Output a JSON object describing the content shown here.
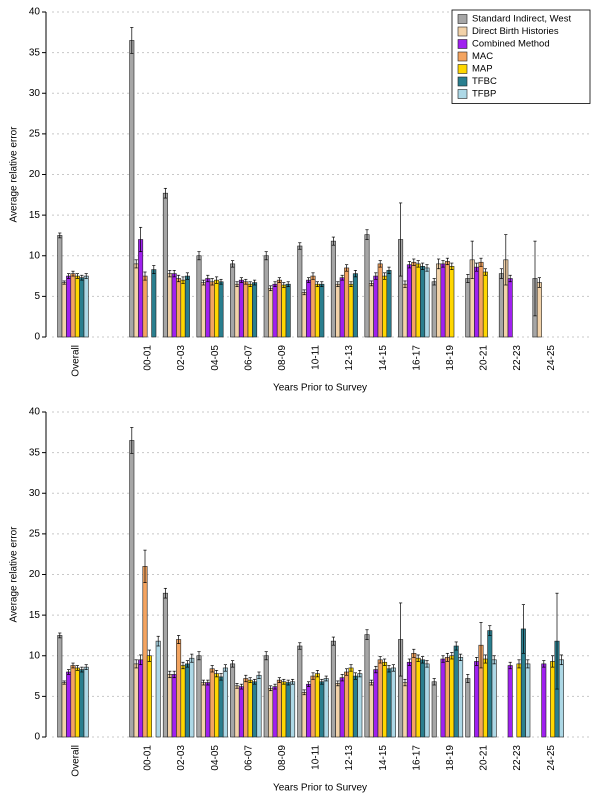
{
  "chart_data": [
    {
      "type": "bar",
      "xlabel": "Years Prior to Survey",
      "ylabel": "Average relative error",
      "categories": [
        "Overall",
        "00-01",
        "02-03",
        "04-05",
        "06-07",
        "08-09",
        "10-11",
        "12-13",
        "14-15",
        "16-17",
        "18-19",
        "20-21",
        "22-23",
        "24-25"
      ],
      "ylim": [
        0,
        40
      ],
      "yticks": [
        0,
        5,
        10,
        15,
        20,
        25,
        30,
        35,
        40
      ],
      "grid": true,
      "legend": "top-right",
      "series": [
        {
          "name": "Standard Indirect, West",
          "color": "#a6a6a6",
          "values": [
            12.5,
            36.5,
            17.7,
            10,
            9,
            10,
            11.2,
            11.8,
            12.6,
            12,
            6.8,
            7.2,
            7.8,
            7.2
          ],
          "errors": [
            0.3,
            1.6,
            0.6,
            0.5,
            0.4,
            0.5,
            0.4,
            0.5,
            0.6,
            4.5,
            0.4,
            0.5,
            0.6,
            4.6
          ]
        },
        {
          "name": "Direct Birth Histories",
          "color": "#f2d2a9",
          "values": [
            6.7,
            9,
            7.8,
            6.7,
            6.5,
            6,
            5.5,
            6.5,
            6.6,
            6.5,
            9,
            9.5,
            9.5,
            6.7
          ],
          "errors": [
            0.2,
            0.5,
            0.4,
            0.3,
            0.3,
            0.3,
            0.3,
            0.3,
            0.3,
            0.4,
            0.6,
            2.3,
            3.1,
            0.6
          ]
        },
        {
          "name": "Combined Method",
          "color": "#a020f0",
          "values": [
            7.5,
            12,
            7.8,
            7.2,
            7,
            6.5,
            7,
            7.3,
            7.5,
            8.9,
            9,
            8.6,
            7.2,
            null
          ],
          "errors": [
            0.3,
            1.5,
            0.4,
            0.4,
            0.3,
            0.3,
            0.3,
            0.3,
            0.4,
            0.4,
            0.4,
            0.5,
            0.4,
            null
          ]
        },
        {
          "name": "MAC",
          "color": "#f4a460",
          "values": [
            7.8,
            7.5,
            7.2,
            6.8,
            6.8,
            7,
            7.5,
            8.5,
            9,
            9.2,
            9.3,
            9.2,
            null,
            null
          ],
          "errors": [
            0.3,
            0.5,
            0.4,
            0.4,
            0.3,
            0.3,
            0.4,
            0.4,
            0.4,
            0.4,
            0.4,
            0.5,
            null,
            null
          ]
        },
        {
          "name": "MAP",
          "color": "#ffd700",
          "values": [
            7.5,
            null,
            7,
            7,
            6.5,
            6.4,
            6.5,
            6.5,
            7.5,
            9,
            8.7,
            8,
            null,
            null
          ],
          "errors": [
            0.3,
            null,
            0.4,
            0.4,
            0.3,
            0.3,
            0.3,
            0.3,
            0.4,
            0.4,
            0.4,
            0.4,
            null,
            null
          ]
        },
        {
          "name": "TFBC",
          "color": "#2a7f8f",
          "values": [
            7.3,
            8.3,
            7.5,
            6.8,
            6.7,
            6.5,
            6.5,
            7.8,
            8.2,
            8.7,
            null,
            null,
            null,
            null
          ],
          "errors": [
            0.3,
            0.5,
            0.4,
            0.3,
            0.3,
            0.3,
            0.3,
            0.4,
            0.4,
            0.4,
            null,
            null,
            null,
            null
          ]
        },
        {
          "name": "TFBP",
          "color": "#add8e6",
          "values": [
            7.5,
            null,
            null,
            null,
            null,
            null,
            null,
            null,
            null,
            8.5,
            null,
            null,
            null,
            null
          ],
          "errors": [
            0.3,
            null,
            null,
            null,
            null,
            null,
            null,
            null,
            null,
            0.4,
            null,
            null,
            null,
            null
          ]
        }
      ]
    },
    {
      "type": "bar",
      "xlabel": "Years Prior to Survey",
      "ylabel": "Average relative error",
      "categories": [
        "Overall",
        "00-01",
        "02-03",
        "04-05",
        "06-07",
        "08-09",
        "10-11",
        "12-13",
        "14-15",
        "16-17",
        "18-19",
        "20-21",
        "22-23",
        "24-25"
      ],
      "ylim": [
        0,
        40
      ],
      "yticks": [
        0,
        5,
        10,
        15,
        20,
        25,
        30,
        35,
        40
      ],
      "grid": true,
      "series": [
        {
          "color": "#a6a6a6",
          "values": [
            12.5,
            36.5,
            17.7,
            10,
            9,
            10,
            11.2,
            11.8,
            12.6,
            12,
            6.8,
            7.2,
            null,
            null
          ],
          "errors": [
            0.3,
            1.6,
            0.6,
            0.5,
            0.4,
            0.5,
            0.4,
            0.5,
            0.6,
            4.5,
            0.4,
            0.5,
            null,
            null
          ]
        },
        {
          "color": "#f2d2a9",
          "values": [
            6.7,
            9,
            7.7,
            6.7,
            6.3,
            6,
            5.5,
            6.6,
            6.7,
            6.7,
            null,
            null,
            null,
            null
          ],
          "errors": [
            0.2,
            0.5,
            0.4,
            0.3,
            0.3,
            0.3,
            0.3,
            0.3,
            0.3,
            0.4,
            null,
            null,
            null,
            null
          ]
        },
        {
          "color": "#a020f0",
          "values": [
            8,
            9.5,
            7.7,
            6.7,
            6.2,
            6.2,
            6.5,
            7.3,
            8.3,
            9.2,
            9.6,
            9.3,
            8.8,
            9
          ],
          "errors": [
            0.3,
            0.6,
            0.4,
            0.3,
            0.3,
            0.3,
            0.3,
            0.4,
            0.4,
            0.4,
            0.4,
            0.5,
            0.4,
            0.4
          ]
        },
        {
          "color": "#f4a460",
          "values": [
            8.8,
            21,
            12,
            8.4,
            7.2,
            7,
            7.5,
            8,
            9.5,
            10.3,
            9.8,
            11.3,
            null,
            null
          ],
          "errors": [
            0.3,
            2,
            0.5,
            0.4,
            0.4,
            0.3,
            0.4,
            0.4,
            0.4,
            0.5,
            0.5,
            2.8,
            null,
            null
          ]
        },
        {
          "color": "#ffd700",
          "values": [
            8.5,
            10,
            8.8,
            7.8,
            7,
            6.8,
            7.8,
            8.5,
            9.2,
            9.7,
            10,
            9.6,
            9,
            9.3
          ],
          "errors": [
            0.3,
            0.7,
            0.4,
            0.4,
            0.3,
            0.3,
            0.4,
            0.4,
            0.4,
            0.4,
            0.4,
            0.5,
            0.5,
            0.7
          ]
        },
        {
          "color": "#2a7f8f",
          "values": [
            8.3,
            null,
            9,
            7.4,
            6.8,
            6.7,
            6.8,
            7.5,
            8.4,
            9.5,
            11.2,
            13.1,
            13.3,
            11.8
          ],
          "errors": [
            0.3,
            null,
            0.4,
            0.4,
            0.3,
            0.3,
            0.3,
            0.4,
            0.4,
            0.4,
            0.5,
            0.6,
            3,
            5.9
          ]
        },
        {
          "color": "#add8e6",
          "values": [
            8.6,
            11.8,
            9.7,
            8.5,
            7.6,
            6.8,
            7.2,
            7.8,
            8.5,
            9,
            9.8,
            9.5,
            9,
            9.5
          ],
          "errors": [
            0.3,
            0.6,
            0.5,
            0.4,
            0.4,
            0.3,
            0.3,
            0.4,
            0.4,
            0.4,
            0.4,
            0.5,
            0.5,
            0.6
          ]
        }
      ]
    }
  ]
}
